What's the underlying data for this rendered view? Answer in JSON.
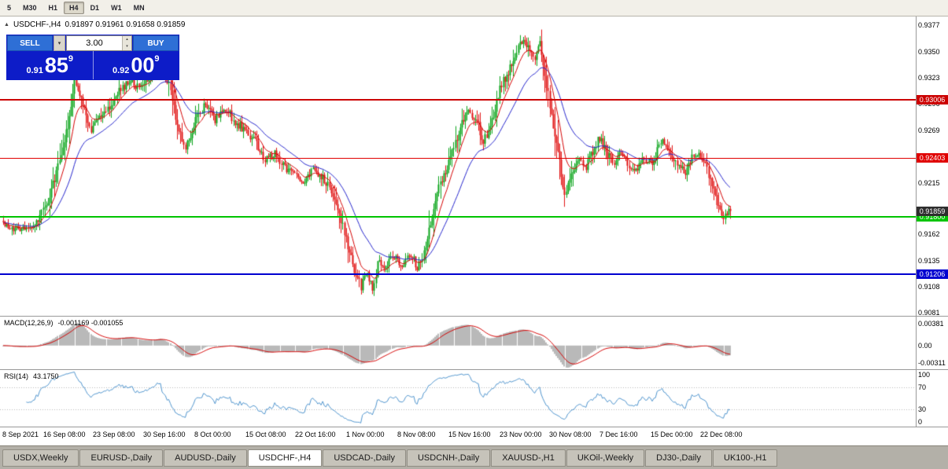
{
  "toolbar": {
    "timeframes": [
      "5",
      "M30",
      "H1",
      "H4",
      "D1",
      "W1",
      "MN"
    ],
    "active_timeframe": "H4"
  },
  "icons": {
    "ohlc_marker": "▲",
    "dropdown_caret": "▾",
    "spin_up": "▴",
    "spin_down": "▾"
  },
  "chart_header": {
    "symbol": "USDCHF-,H4",
    "ohlc": "0.91897 0.91961 0.91658 0.91859"
  },
  "trade_panel": {
    "sell_label": "SELL",
    "buy_label": "BUY",
    "volume": "3.00",
    "sell_price": {
      "prefix": "0.91",
      "big": "85",
      "sup": "9"
    },
    "buy_price": {
      "prefix": "0.92",
      "big": "00",
      "sup": "9"
    }
  },
  "colors": {
    "trade_panel_bg": "#0d1cc8",
    "trade_button_blue": "#2e6fd6",
    "current_price_badge": "#2e2e2e"
  },
  "price_axis": {
    "labels": [
      "0.9377",
      "0.9350",
      "0.9323",
      "0.9296",
      "0.9269",
      "0.9215",
      "0.9162",
      "0.9135",
      "0.9108",
      "0.9081"
    ]
  },
  "levels": [
    {
      "label": "0.93006",
      "value": 0.93006,
      "color": "#cc0000",
      "width": 2
    },
    {
      "label": "0.92403",
      "value": 0.92403,
      "color": "#e00000",
      "width": 1
    },
    {
      "label": "0.91800",
      "value": 0.918,
      "color": "#00c400",
      "width": 2
    },
    {
      "label": "0.91206",
      "value": 0.91206,
      "color": "#0000d0",
      "width": 2
    }
  ],
  "current_price": {
    "label": "0.91859",
    "value": 0.91859
  },
  "macd_panel": {
    "title": "MACD(12,26,9)",
    "values": "-0.001169 -0.001055",
    "axis_top": "0.00381",
    "axis_mid": "0.00",
    "axis_bottom": "-0.00311"
  },
  "rsi_panel": {
    "title": "RSI(14)",
    "value": "43.1750",
    "axis": [
      100,
      70,
      30,
      0
    ]
  },
  "time_axis": {
    "labels": [
      "8 Sep 2021",
      "16 Sep 08:00",
      "23 Sep 08:00",
      "30 Sep 16:00",
      "8 Oct 00:00",
      "15 Oct 08:00",
      "22 Oct 16:00",
      "1 Nov 00:00",
      "8 Nov 08:00",
      "15 Nov 16:00",
      "23 Nov 00:00",
      "30 Nov 08:00",
      "7 Dec 16:00",
      "15 Dec 00:00",
      "22 Dec 08:00"
    ]
  },
  "tabs": {
    "items": [
      "USDX,Weekly",
      "EURUSD-,Daily",
      "AUDUSD-,Daily",
      "USDCHF-,H4",
      "USDCAD-,Daily",
      "USDCNH-,Daily",
      "XAUUSD-,H1",
      "UKOil-,Weekly",
      "DJ30-,Daily",
      "UK100-,H1"
    ],
    "active": "USDCHF-,H4"
  },
  "chart_data": {
    "type": "candlestick",
    "symbol": "USDCHF",
    "timeframe": "H4",
    "price_min": 0.9078,
    "price_max": 0.9387,
    "candle_count": 440,
    "last_close": 0.91859,
    "ma_fast_period": 10,
    "ma_slow_period": 30,
    "colors": {
      "bull": "#0ca51c",
      "bear": "#e01414",
      "ma_fast": "#d40000",
      "ma_slow": "#2525cc",
      "macd_hist": "#b9b9b9",
      "macd_signal": "#d40000",
      "rsi": "#4f94cd",
      "rsi_levels": "#b8b8b8"
    },
    "anchors": [
      [
        0.0,
        0.9176
      ],
      [
        0.022,
        0.9165
      ],
      [
        0.043,
        0.9172
      ],
      [
        0.059,
        0.919
      ],
      [
        0.076,
        0.923
      ],
      [
        0.092,
        0.928
      ],
      [
        0.099,
        0.932
      ],
      [
        0.11,
        0.9296
      ],
      [
        0.122,
        0.927
      ],
      [
        0.135,
        0.9282
      ],
      [
        0.148,
        0.9296
      ],
      [
        0.162,
        0.931
      ],
      [
        0.176,
        0.9322
      ],
      [
        0.189,
        0.931
      ],
      [
        0.202,
        0.9328
      ],
      [
        0.216,
        0.934
      ],
      [
        0.227,
        0.932
      ],
      [
        0.241,
        0.927
      ],
      [
        0.252,
        0.9252
      ],
      [
        0.265,
        0.928
      ],
      [
        0.278,
        0.9296
      ],
      [
        0.292,
        0.928
      ],
      [
        0.306,
        0.9292
      ],
      [
        0.319,
        0.9278
      ],
      [
        0.332,
        0.927
      ],
      [
        0.346,
        0.9258
      ],
      [
        0.36,
        0.924
      ],
      [
        0.373,
        0.9245
      ],
      [
        0.386,
        0.9231
      ],
      [
        0.4,
        0.9223
      ],
      [
        0.414,
        0.9218
      ],
      [
        0.427,
        0.923
      ],
      [
        0.44,
        0.922
      ],
      [
        0.454,
        0.9203
      ],
      [
        0.467,
        0.917
      ],
      [
        0.481,
        0.913
      ],
      [
        0.492,
        0.9108
      ],
      [
        0.501,
        0.9125
      ],
      [
        0.508,
        0.9102
      ],
      [
        0.516,
        0.9135
      ],
      [
        0.526,
        0.9128
      ],
      [
        0.537,
        0.914
      ],
      [
        0.548,
        0.913
      ],
      [
        0.559,
        0.9142
      ],
      [
        0.57,
        0.9128
      ],
      [
        0.578,
        0.914
      ],
      [
        0.589,
        0.918
      ],
      [
        0.598,
        0.921
      ],
      [
        0.609,
        0.9228
      ],
      [
        0.619,
        0.925
      ],
      [
        0.63,
        0.9275
      ],
      [
        0.641,
        0.9288
      ],
      [
        0.652,
        0.9278
      ],
      [
        0.659,
        0.9258
      ],
      [
        0.667,
        0.9268
      ],
      [
        0.676,
        0.9292
      ],
      [
        0.684,
        0.9315
      ],
      [
        0.695,
        0.933
      ],
      [
        0.706,
        0.935
      ],
      [
        0.714,
        0.9365
      ],
      [
        0.721,
        0.9355
      ],
      [
        0.73,
        0.9342
      ],
      [
        0.738,
        0.936
      ],
      [
        0.746,
        0.932
      ],
      [
        0.753,
        0.9285
      ],
      [
        0.762,
        0.925
      ],
      [
        0.771,
        0.9205
      ],
      [
        0.779,
        0.9218
      ],
      [
        0.789,
        0.924
      ],
      [
        0.8,
        0.923
      ],
      [
        0.811,
        0.9248
      ],
      [
        0.819,
        0.9262
      ],
      [
        0.829,
        0.9245
      ],
      [
        0.84,
        0.9235
      ],
      [
        0.849,
        0.9245
      ],
      [
        0.859,
        0.9235
      ],
      [
        0.87,
        0.9228
      ],
      [
        0.881,
        0.924
      ],
      [
        0.892,
        0.9235
      ],
      [
        0.906,
        0.926
      ],
      [
        0.916,
        0.9245
      ],
      [
        0.926,
        0.9232
      ],
      [
        0.937,
        0.9225
      ],
      [
        0.946,
        0.924
      ],
      [
        0.957,
        0.9242
      ],
      [
        0.968,
        0.9228
      ],
      [
        0.978,
        0.92
      ],
      [
        0.989,
        0.918
      ],
      [
        1.0,
        0.91859
      ]
    ]
  }
}
